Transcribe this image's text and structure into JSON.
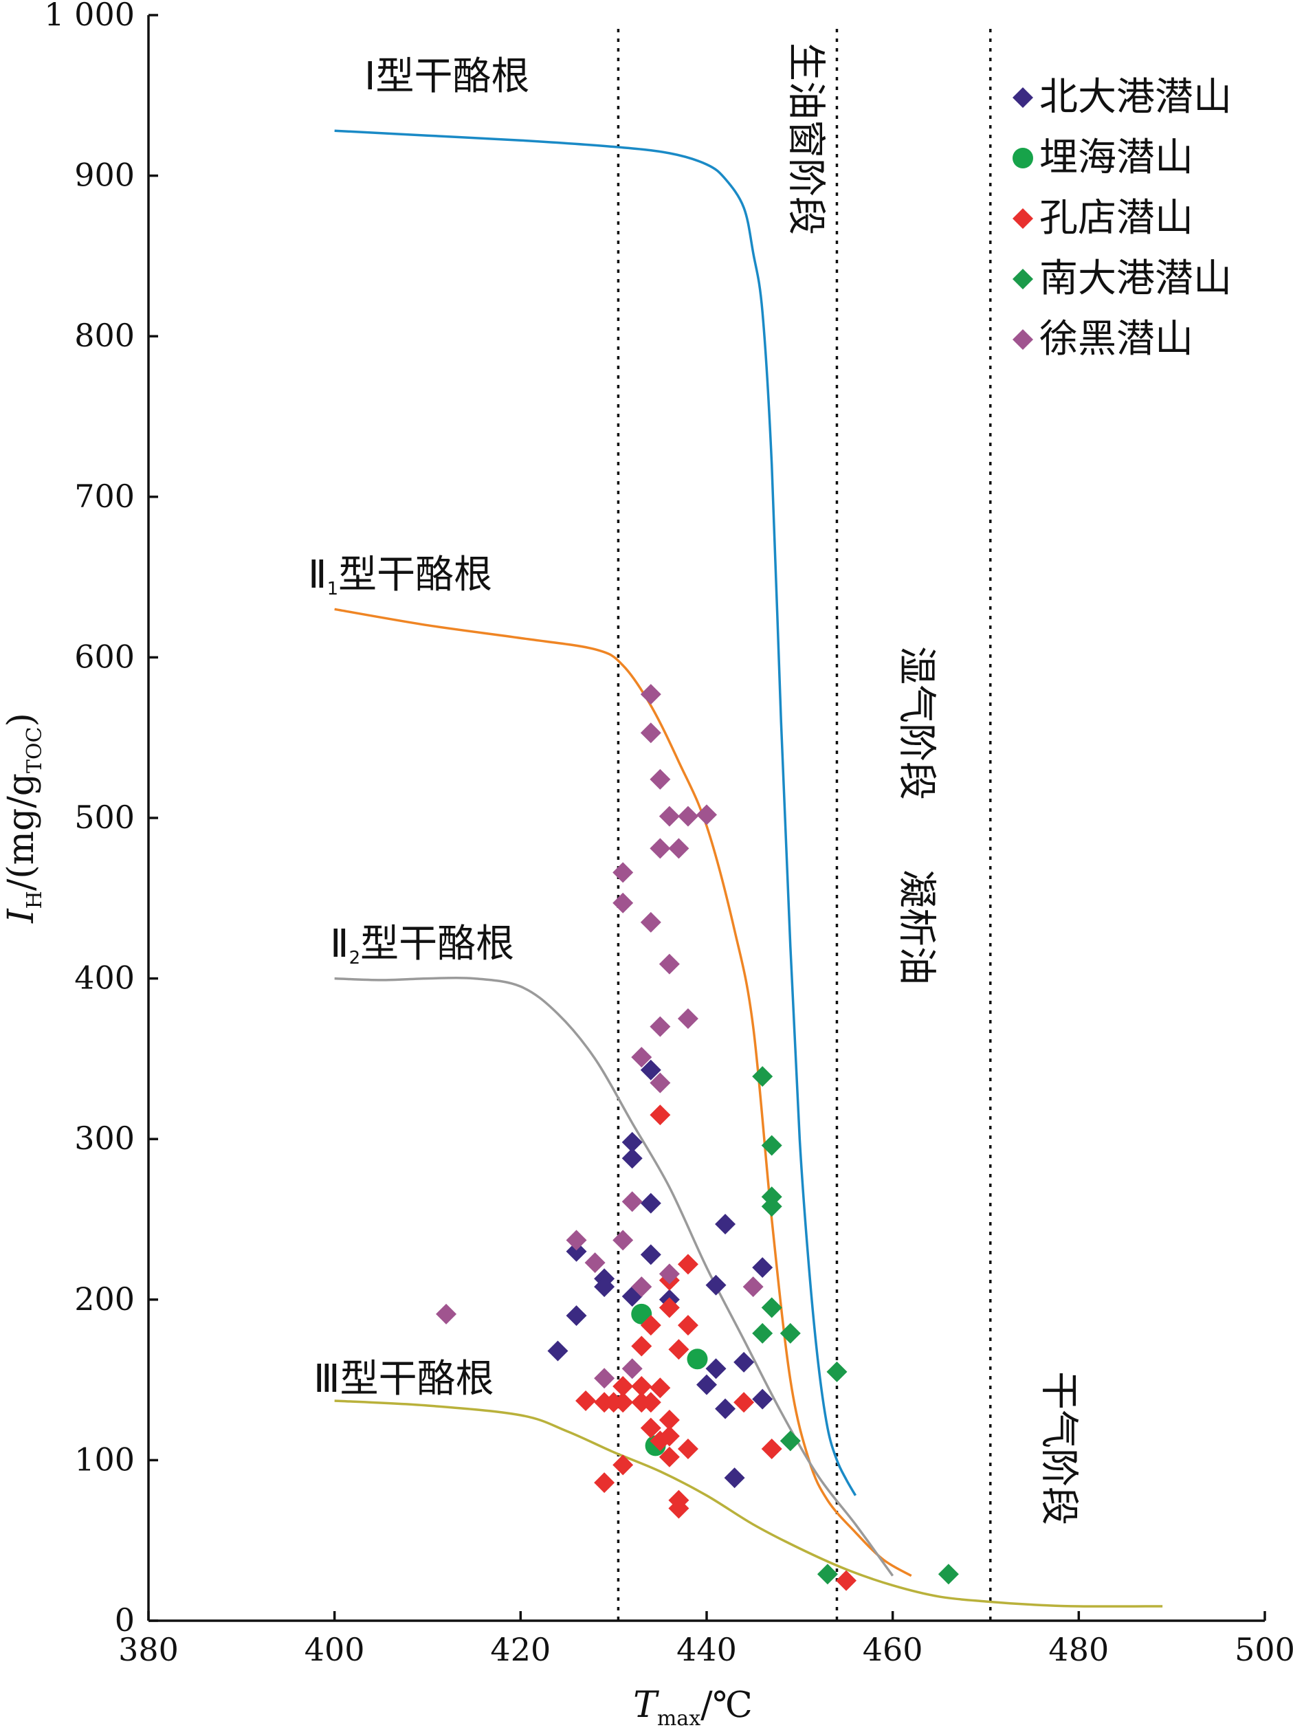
{
  "chart_data": {
    "type": "scatter",
    "xlabel_main": "T",
    "xlabel_sub": "max",
    "xlabel_unit": "/℃",
    "ylabel_main": "I",
    "ylabel_sub": "H",
    "ylabel_unit_a": "/(mg/g",
    "ylabel_unit_b": "TOC",
    "ylabel_unit_c": ")",
    "xlim": [
      380,
      500
    ],
    "ylim": [
      0,
      1000
    ],
    "xticks": [
      380,
      400,
      420,
      440,
      460,
      480,
      500
    ],
    "yticks": [
      0,
      100,
      200,
      300,
      400,
      500,
      600,
      700,
      800,
      900,
      1000
    ],
    "ytick_labels": [
      "0",
      "100",
      "200",
      "300",
      "400",
      "500",
      "600",
      "700",
      "800",
      "900",
      "1 000"
    ],
    "grid": false,
    "legend_position": "top-right",
    "vertical_lines": [
      430.5,
      454,
      470.5
    ],
    "annotations": {
      "stage_oil": "生油窗阶段",
      "stage_condensate_a": "凝析油",
      "stage_condensate_b": "湿气阶段",
      "stage_dry_gas": "干气阶段"
    },
    "curves": [
      {
        "name": "Ⅰ型干酪根",
        "color": "#1a8ac6",
        "points": [
          [
            400,
            928
          ],
          [
            410,
            925
          ],
          [
            420,
            922
          ],
          [
            430,
            918
          ],
          [
            436,
            914
          ],
          [
            440,
            907
          ],
          [
            442,
            898
          ],
          [
            444,
            880
          ],
          [
            445,
            852
          ],
          [
            446,
            815
          ],
          [
            447,
            720
          ],
          [
            448,
            560
          ],
          [
            449,
            420
          ],
          [
            450,
            300
          ],
          [
            451,
            220
          ],
          [
            452,
            160
          ],
          [
            453,
            120
          ],
          [
            454,
            100
          ],
          [
            455,
            88
          ],
          [
            456,
            78
          ]
        ]
      },
      {
        "name": "Ⅱ型干酪根",
        "sub": "1",
        "color": "#ef8524",
        "points": [
          [
            400,
            630
          ],
          [
            410,
            620
          ],
          [
            420,
            612
          ],
          [
            428,
            605
          ],
          [
            431,
            595
          ],
          [
            434,
            570
          ],
          [
            437,
            535
          ],
          [
            440,
            495
          ],
          [
            443,
            430
          ],
          [
            445,
            370
          ],
          [
            447,
            250
          ],
          [
            449,
            150
          ],
          [
            451,
            100
          ],
          [
            453,
            75
          ],
          [
            456,
            55
          ],
          [
            459,
            38
          ],
          [
            462,
            28
          ]
        ]
      },
      {
        "name": "Ⅱ型干酪根",
        "sub": "2",
        "color": "#9a9a9a",
        "points": [
          [
            400,
            400
          ],
          [
            405,
            399
          ],
          [
            410,
            400
          ],
          [
            415,
            400
          ],
          [
            420,
            395
          ],
          [
            424,
            378
          ],
          [
            428,
            350
          ],
          [
            432,
            310
          ],
          [
            436,
            270
          ],
          [
            440,
            220
          ],
          [
            444,
            175
          ],
          [
            448,
            130
          ],
          [
            452,
            90
          ],
          [
            456,
            60
          ],
          [
            460,
            28
          ]
        ]
      },
      {
        "name": "Ⅲ型干酪根",
        "color": "#b9b13b",
        "points": [
          [
            400,
            137
          ],
          [
            410,
            134
          ],
          [
            420,
            128
          ],
          [
            425,
            118
          ],
          [
            430,
            105
          ],
          [
            435,
            93
          ],
          [
            440,
            78
          ],
          [
            445,
            60
          ],
          [
            450,
            45
          ],
          [
            455,
            32
          ],
          [
            460,
            22
          ],
          [
            465,
            15
          ],
          [
            470,
            12
          ],
          [
            475,
            10
          ],
          [
            480,
            9
          ],
          [
            489,
            9
          ]
        ]
      }
    ],
    "series": [
      {
        "name": "北大港潜山",
        "color": "#3b2a82",
        "marker": "diamond",
        "points": [
          [
            424,
            168
          ],
          [
            426,
            230
          ],
          [
            426,
            190
          ],
          [
            429,
            213
          ],
          [
            429,
            208
          ],
          [
            432,
            298
          ],
          [
            432,
            288
          ],
          [
            432,
            202
          ],
          [
            434,
            260
          ],
          [
            434,
            228
          ],
          [
            436,
            200
          ],
          [
            440,
            147
          ],
          [
            441,
            157
          ],
          [
            441,
            209
          ],
          [
            442,
            132
          ],
          [
            442,
            247
          ],
          [
            443,
            89
          ],
          [
            444,
            161
          ],
          [
            446,
            138
          ],
          [
            446,
            220
          ],
          [
            434,
            343
          ]
        ]
      },
      {
        "name": "埋海潜山",
        "color": "#17a34a",
        "marker": "circle",
        "points": [
          [
            433,
            191
          ],
          [
            434.5,
            109
          ],
          [
            439,
            163
          ]
        ]
      },
      {
        "name": "孔店潜山",
        "color": "#e8302e",
        "marker": "diamond",
        "points": [
          [
            427,
            137
          ],
          [
            429,
            86
          ],
          [
            429,
            136
          ],
          [
            430,
            136
          ],
          [
            431,
            97
          ],
          [
            431,
            146
          ],
          [
            431,
            136
          ],
          [
            433,
            146
          ],
          [
            433,
            171
          ],
          [
            433,
            136
          ],
          [
            434,
            120
          ],
          [
            434,
            184
          ],
          [
            434,
            136
          ],
          [
            435,
            145
          ],
          [
            435,
            112
          ],
          [
            435,
            315
          ],
          [
            436,
            212
          ],
          [
            436,
            195
          ],
          [
            436,
            125
          ],
          [
            436,
            115
          ],
          [
            436,
            102
          ],
          [
            437,
            169
          ],
          [
            437,
            75
          ],
          [
            437,
            70
          ],
          [
            438,
            184
          ],
          [
            438,
            107
          ],
          [
            438,
            222
          ],
          [
            444,
            136
          ],
          [
            447,
            107
          ],
          [
            455,
            25
          ]
        ]
      },
      {
        "name": "南大港潜山",
        "color": "#1b9a4a",
        "marker": "diamond",
        "points": [
          [
            446,
            339
          ],
          [
            447,
            296
          ],
          [
            447,
            264
          ],
          [
            447,
            258
          ],
          [
            447,
            195
          ],
          [
            446,
            179
          ],
          [
            449,
            179
          ],
          [
            449,
            112
          ],
          [
            453,
            29
          ],
          [
            454,
            155
          ],
          [
            466,
            29
          ]
        ]
      },
      {
        "name": "徐黑潜山",
        "color": "#a0548f",
        "marker": "diamond",
        "points": [
          [
            412,
            191
          ],
          [
            426,
            237
          ],
          [
            428,
            223
          ],
          [
            429,
            151
          ],
          [
            431,
            466
          ],
          [
            431,
            447
          ],
          [
            431,
            237
          ],
          [
            432,
            157
          ],
          [
            432,
            261
          ],
          [
            433,
            208
          ],
          [
            433,
            351
          ],
          [
            434,
            577
          ],
          [
            434,
            553
          ],
          [
            434,
            435
          ],
          [
            435,
            524
          ],
          [
            435,
            481
          ],
          [
            435,
            370
          ],
          [
            435,
            335
          ],
          [
            436,
            501
          ],
          [
            436,
            409
          ],
          [
            436,
            216
          ],
          [
            437,
            481
          ],
          [
            438,
            501
          ],
          [
            438,
            375
          ],
          [
            440,
            502
          ],
          [
            445,
            208
          ]
        ]
      }
    ]
  }
}
